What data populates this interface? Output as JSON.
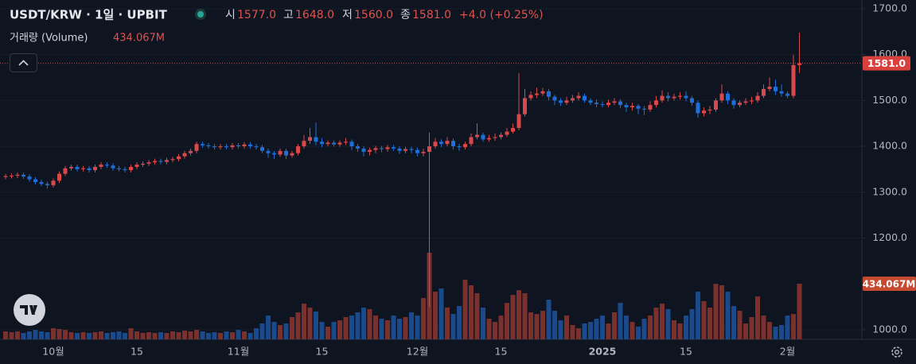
{
  "chart_data": {
    "type": "candlestick",
    "title": "USDT/KRW · 1일 · UPBIT",
    "header": {
      "open_key": "시",
      "open": "1577.0",
      "high_key": "고",
      "high": "1648.0",
      "low_key": "저",
      "low": "1560.0",
      "close_key": "종",
      "close": "1581.0",
      "change": "+4.0 (+0.25%)"
    },
    "volume_name": "거래량 (Volume)",
    "volume_label": "434.067M",
    "close_label": "1581.0",
    "up_color": "#d9484a",
    "down_color": "#1f6fd8",
    "volume_up_color": "#7a302d",
    "volume_down_color": "#1b4a8c",
    "ylim": [
      979,
      1719
    ],
    "yticks": [
      {
        "value": 1700,
        "label": "1700.0"
      },
      {
        "value": 1600,
        "label": "1600.0"
      },
      {
        "value": 1500,
        "label": "1500.0"
      },
      {
        "value": 1400,
        "label": "1400.0"
      },
      {
        "value": 1300,
        "label": "1300.0"
      },
      {
        "value": 1200,
        "label": "1200.0"
      },
      {
        "value": 1000,
        "label": "1000.0"
      }
    ],
    "grid": true,
    "categories": [
      null,
      null,
      null,
      null,
      null,
      null,
      null,
      null,
      "10월",
      null,
      null,
      null,
      null,
      null,
      null,
      null,
      null,
      null,
      null,
      null,
      null,
      null,
      "15",
      null,
      null,
      null,
      null,
      null,
      null,
      null,
      null,
      null,
      null,
      null,
      null,
      null,
      null,
      null,
      null,
      "11월",
      null,
      null,
      null,
      null,
      null,
      null,
      null,
      null,
      null,
      null,
      null,
      null,
      null,
      "15",
      null,
      null,
      null,
      null,
      null,
      null,
      null,
      null,
      null,
      null,
      null,
      null,
      null,
      null,
      null,
      "12월",
      null,
      null,
      null,
      null,
      null,
      null,
      null,
      null,
      null,
      null,
      null,
      null,
      null,
      "15",
      null,
      null,
      null,
      null,
      null,
      null,
      null,
      null,
      null,
      null,
      null,
      null,
      null,
      null,
      null,
      null,
      "2025",
      null,
      null,
      null,
      null,
      null,
      null,
      null,
      null,
      null,
      null,
      null,
      null,
      null,
      "15",
      null,
      null,
      null,
      null,
      null,
      null,
      null,
      null,
      null,
      null,
      null,
      null,
      null,
      null,
      null,
      null,
      "2월",
      null,
      null
    ],
    "open": [
      1333,
      1335,
      1336,
      1338,
      1334,
      1328,
      1322,
      1318,
      1315,
      1325,
      1340,
      1352,
      1355,
      1350,
      1352,
      1348,
      1355,
      1360,
      1358,
      1352,
      1350,
      1348,
      1355,
      1360,
      1362,
      1365,
      1368,
      1366,
      1370,
      1372,
      1378,
      1385,
      1390,
      1405,
      1402,
      1400,
      1398,
      1400,
      1398,
      1402,
      1400,
      1404,
      1400,
      1398,
      1390,
      1385,
      1382,
      1390,
      1380,
      1385,
      1400,
      1412,
      1420,
      1410,
      1405,
      1408,
      1404,
      1408,
      1410,
      1400,
      1395,
      1388,
      1392,
      1396,
      1394,
      1398,
      1395,
      1390,
      1394,
      1392,
      1385,
      1388,
      1400,
      1410,
      1405,
      1412,
      1400,
      1398,
      1405,
      1420,
      1425,
      1415,
      1418,
      1420,
      1425,
      1432,
      1440,
      1470,
      1505,
      1512,
      1515,
      1520,
      1508,
      1500,
      1495,
      1500,
      1505,
      1510,
      1500,
      1495,
      1492,
      1490,
      1495,
      1498,
      1490,
      1485,
      1488,
      1482,
      1480,
      1490,
      1500,
      1510,
      1505,
      1508,
      1510,
      1505,
      1495,
      1472,
      1478,
      1480,
      1500,
      1515,
      1500,
      1490,
      1495,
      1498,
      1500,
      1510,
      1525,
      1530,
      1520,
      1515,
      1510,
      1577
    ],
    "high": [
      1340,
      1341,
      1343,
      1343,
      1339,
      1333,
      1327,
      1323,
      1330,
      1345,
      1357,
      1360,
      1360,
      1357,
      1357,
      1360,
      1365,
      1365,
      1363,
      1357,
      1355,
      1360,
      1365,
      1367,
      1370,
      1373,
      1373,
      1375,
      1377,
      1383,
      1390,
      1395,
      1410,
      1410,
      1407,
      1405,
      1405,
      1405,
      1407,
      1407,
      1409,
      1409,
      1405,
      1403,
      1395,
      1390,
      1395,
      1395,
      1390,
      1405,
      1425,
      1440,
      1452,
      1418,
      1413,
      1413,
      1413,
      1418,
      1415,
      1405,
      1400,
      1397,
      1401,
      1401,
      1403,
      1403,
      1400,
      1399,
      1399,
      1397,
      1395,
      1430,
      1418,
      1415,
      1420,
      1417,
      1405,
      1410,
      1428,
      1450,
      1430,
      1425,
      1428,
      1430,
      1440,
      1450,
      1560,
      1525,
      1520,
      1528,
      1527,
      1525,
      1512,
      1505,
      1508,
      1512,
      1518,
      1515,
      1505,
      1502,
      1498,
      1502,
      1505,
      1503,
      1495,
      1495,
      1492,
      1488,
      1498,
      1510,
      1522,
      1518,
      1515,
      1518,
      1520,
      1510,
      1500,
      1485,
      1488,
      1505,
      1535,
      1520,
      1505,
      1500,
      1505,
      1508,
      1518,
      1535,
      1550,
      1545,
      1535,
      1520,
      1600,
      1648
    ],
    "low": [
      1328,
      1330,
      1331,
      1329,
      1323,
      1317,
      1313,
      1308,
      1310,
      1320,
      1335,
      1347,
      1345,
      1345,
      1343,
      1343,
      1350,
      1353,
      1347,
      1345,
      1343,
      1343,
      1350,
      1355,
      1357,
      1360,
      1361,
      1361,
      1365,
      1367,
      1373,
      1380,
      1385,
      1397,
      1395,
      1393,
      1393,
      1393,
      1393,
      1395,
      1395,
      1395,
      1393,
      1385,
      1375,
      1372,
      1377,
      1372,
      1375,
      1380,
      1395,
      1405,
      1402,
      1398,
      1400,
      1399,
      1399,
      1403,
      1392,
      1388,
      1378,
      1380,
      1385,
      1387,
      1388,
      1390,
      1383,
      1385,
      1385,
      1378,
      1378,
      1050,
      1395,
      1398,
      1400,
      1393,
      1390,
      1393,
      1400,
      1415,
      1410,
      1410,
      1412,
      1415,
      1420,
      1428,
      1435,
      1465,
      1500,
      1505,
      1510,
      1500,
      1490,
      1488,
      1490,
      1495,
      1500,
      1495,
      1490,
      1485,
      1485,
      1485,
      1490,
      1483,
      1475,
      1478,
      1470,
      1468,
      1475,
      1485,
      1495,
      1498,
      1500,
      1502,
      1498,
      1488,
      1462,
      1465,
      1470,
      1475,
      1495,
      1492,
      1482,
      1485,
      1490,
      1492,
      1495,
      1505,
      1520,
      1512,
      1508,
      1505,
      1505,
      1560
    ],
    "close": [
      1335,
      1336,
      1338,
      1334,
      1328,
      1322,
      1318,
      1315,
      1325,
      1340,
      1352,
      1355,
      1350,
      1352,
      1348,
      1355,
      1360,
      1358,
      1352,
      1350,
      1348,
      1355,
      1360,
      1362,
      1365,
      1368,
      1366,
      1370,
      1372,
      1378,
      1385,
      1390,
      1405,
      1402,
      1400,
      1398,
      1400,
      1398,
      1402,
      1400,
      1404,
      1400,
      1398,
      1390,
      1385,
      1382,
      1390,
      1380,
      1385,
      1400,
      1412,
      1420,
      1410,
      1405,
      1408,
      1404,
      1408,
      1410,
      1400,
      1395,
      1388,
      1392,
      1396,
      1394,
      1398,
      1395,
      1390,
      1394,
      1392,
      1385,
      1388,
      1400,
      1410,
      1405,
      1412,
      1400,
      1398,
      1405,
      1420,
      1425,
      1415,
      1418,
      1420,
      1425,
      1432,
      1440,
      1470,
      1505,
      1512,
      1515,
      1520,
      1508,
      1500,
      1495,
      1500,
      1505,
      1510,
      1500,
      1495,
      1492,
      1490,
      1495,
      1498,
      1490,
      1485,
      1488,
      1482,
      1480,
      1490,
      1500,
      1510,
      1505,
      1508,
      1510,
      1505,
      1495,
      1472,
      1478,
      1480,
      1500,
      1515,
      1500,
      1490,
      1495,
      1498,
      1500,
      1510,
      1525,
      1530,
      1520,
      1515,
      1510,
      1577,
      1581
    ],
    "volume": [
      62,
      56,
      62,
      50,
      62,
      74,
      62,
      56,
      87,
      81,
      74,
      56,
      50,
      56,
      50,
      56,
      62,
      50,
      56,
      62,
      50,
      87,
      62,
      50,
      56,
      50,
      56,
      50,
      62,
      56,
      68,
      62,
      74,
      62,
      50,
      56,
      50,
      62,
      56,
      74,
      62,
      50,
      87,
      124,
      186,
      136,
      112,
      124,
      174,
      211,
      279,
      248,
      217,
      136,
      99,
      136,
      149,
      174,
      186,
      211,
      248,
      236,
      186,
      161,
      149,
      186,
      161,
      174,
      211,
      186,
      322,
      676,
      372,
      397,
      248,
      198,
      260,
      465,
      422,
      360,
      248,
      161,
      136,
      186,
      285,
      347,
      384,
      360,
      211,
      198,
      223,
      310,
      223,
      149,
      186,
      112,
      87,
      124,
      136,
      161,
      186,
      124,
      211,
      285,
      186,
      136,
      99,
      161,
      186,
      248,
      279,
      236,
      149,
      124,
      186,
      236,
      372,
      298,
      248,
      434,
      422,
      372,
      260,
      223,
      124,
      174,
      335,
      186,
      136,
      99,
      112,
      186,
      198,
      434.067
    ]
  }
}
